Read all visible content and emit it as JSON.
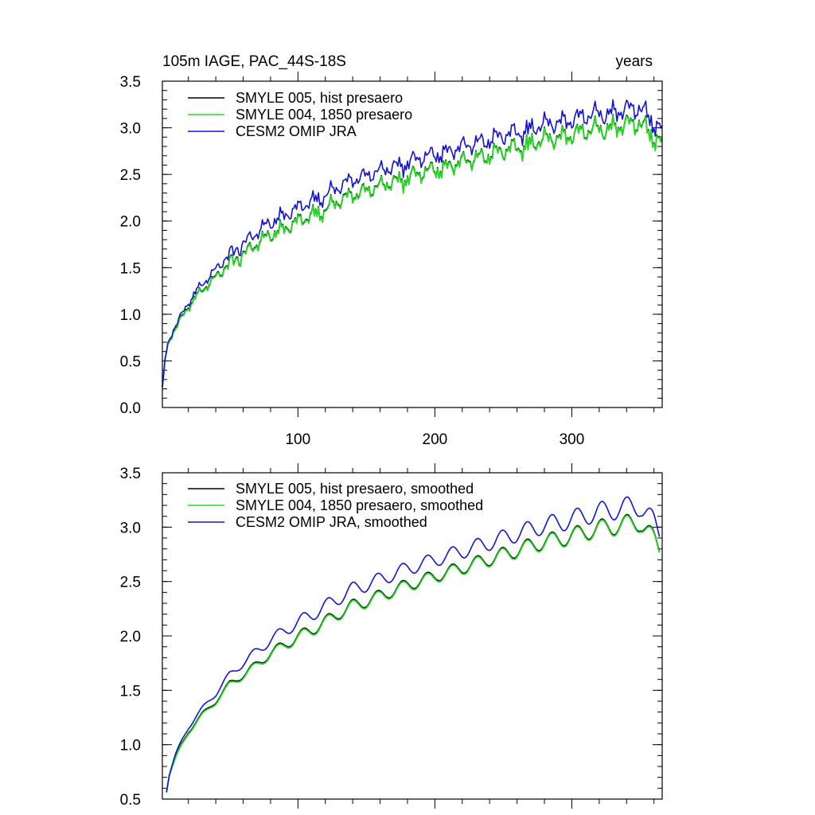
{
  "chart_data": [
    {
      "type": "line",
      "title_left": "105m IAGE, PAC_44S-18S",
      "title_right": "years",
      "xlabel": "",
      "ylabel": "",
      "xlim": [
        1,
        366
      ],
      "ylim": [
        0.0,
        3.5
      ],
      "xticks": [
        100,
        200,
        300
      ],
      "xtick_labels": [
        "100",
        "200",
        "300"
      ],
      "yticks": [
        0.0,
        0.5,
        1.0,
        1.5,
        2.0,
        2.5,
        3.0,
        3.5
      ],
      "ytick_labels": [
        "0.0",
        "0.5",
        "1.0",
        "1.5",
        "2.0",
        "2.5",
        "3.0",
        "3.5"
      ],
      "legend_location": "top-left",
      "series": [
        {
          "name": "SMYLE 005, hist presaero",
          "color": "#000000",
          "x": [
            1,
            3,
            6,
            10,
            15,
            20,
            25,
            30,
            35,
            40,
            45,
            50,
            60,
            70,
            80,
            90,
            100,
            110,
            120,
            130,
            140,
            150,
            160,
            170,
            180,
            190,
            200,
            210,
            220,
            230,
            240,
            250,
            260,
            270,
            280,
            290,
            300,
            310,
            320,
            330,
            340,
            350,
            355,
            360,
            366
          ],
          "y": [
            0.2,
            0.5,
            0.72,
            0.85,
            0.96,
            1.08,
            1.2,
            1.27,
            1.33,
            1.4,
            1.47,
            1.56,
            1.65,
            1.76,
            1.86,
            1.93,
            2.0,
            2.07,
            2.14,
            2.22,
            2.29,
            2.33,
            2.38,
            2.43,
            2.48,
            2.52,
            2.56,
            2.6,
            2.64,
            2.68,
            2.72,
            2.76,
            2.8,
            2.84,
            2.88,
            2.9,
            2.93,
            2.97,
            3.0,
            3.02,
            3.04,
            3.06,
            3.0,
            2.92,
            2.82
          ],
          "noise": 0.09
        },
        {
          "name": "SMYLE 004, 1850 presaero",
          "color": "#22dd22",
          "x": [
            1,
            3,
            6,
            10,
            15,
            20,
            25,
            30,
            35,
            40,
            45,
            50,
            60,
            70,
            80,
            90,
            100,
            110,
            120,
            130,
            140,
            150,
            160,
            170,
            180,
            190,
            200,
            210,
            220,
            230,
            240,
            250,
            260,
            270,
            280,
            290,
            300,
            310,
            320,
            330,
            340,
            350,
            355,
            360,
            366
          ],
          "y": [
            0.2,
            0.5,
            0.71,
            0.84,
            0.95,
            1.07,
            1.19,
            1.26,
            1.32,
            1.39,
            1.46,
            1.55,
            1.64,
            1.75,
            1.85,
            1.92,
            1.99,
            2.06,
            2.13,
            2.21,
            2.28,
            2.32,
            2.37,
            2.42,
            2.47,
            2.51,
            2.55,
            2.59,
            2.63,
            2.67,
            2.71,
            2.75,
            2.79,
            2.83,
            2.87,
            2.89,
            2.92,
            2.96,
            2.99,
            3.01,
            3.03,
            3.05,
            2.99,
            2.91,
            2.81
          ],
          "noise": 0.09
        },
        {
          "name": "CESM2 OMIP JRA",
          "color": "#1414d2",
          "x": [
            1,
            3,
            6,
            10,
            15,
            20,
            25,
            30,
            35,
            40,
            45,
            50,
            60,
            70,
            80,
            90,
            100,
            110,
            120,
            130,
            140,
            150,
            160,
            170,
            180,
            190,
            200,
            210,
            220,
            230,
            240,
            250,
            260,
            270,
            280,
            290,
            300,
            310,
            320,
            330,
            340,
            350,
            355,
            360,
            366
          ],
          "y": [
            0.2,
            0.51,
            0.73,
            0.87,
            0.99,
            1.12,
            1.25,
            1.33,
            1.4,
            1.48,
            1.56,
            1.65,
            1.76,
            1.88,
            1.99,
            2.07,
            2.14,
            2.22,
            2.29,
            2.37,
            2.45,
            2.49,
            2.54,
            2.59,
            2.64,
            2.68,
            2.72,
            2.76,
            2.8,
            2.84,
            2.88,
            2.92,
            2.96,
            3.0,
            3.04,
            3.06,
            3.09,
            3.13,
            3.16,
            3.18,
            3.2,
            3.22,
            3.16,
            3.07,
            2.96
          ],
          "noise": 0.09
        }
      ]
    },
    {
      "type": "line",
      "xlabel": "",
      "ylabel": "",
      "xlim": [
        1,
        366
      ],
      "ylim": [
        0.5,
        3.5
      ],
      "xticks": [
        100,
        200,
        300
      ],
      "xtick_labels": [],
      "yticks": [
        0.5,
        1.0,
        1.5,
        2.0,
        2.5,
        3.0,
        3.5
      ],
      "ytick_labels": [
        "0.5",
        "1.0",
        "1.5",
        "2.0",
        "2.5",
        "3.0",
        "3.5"
      ],
      "legend_location": "top-left",
      "series": [
        {
          "name": "SMYLE 005, hist presaero, smoothed",
          "color": "#000000",
          "x": [
            4,
            6,
            10,
            15,
            20,
            25,
            30,
            35,
            40,
            45,
            50,
            60,
            70,
            80,
            90,
            100,
            110,
            120,
            130,
            140,
            150,
            160,
            170,
            180,
            190,
            200,
            210,
            220,
            230,
            240,
            250,
            260,
            270,
            280,
            290,
            300,
            310,
            320,
            330,
            340,
            350,
            355,
            360,
            364
          ],
          "y": [
            0.58,
            0.72,
            0.86,
            1.0,
            1.12,
            1.2,
            1.28,
            1.34,
            1.4,
            1.48,
            1.56,
            1.64,
            1.74,
            1.84,
            1.92,
            1.99,
            2.06,
            2.13,
            2.21,
            2.28,
            2.32,
            2.37,
            2.42,
            2.47,
            2.51,
            2.55,
            2.59,
            2.63,
            2.67,
            2.71,
            2.75,
            2.79,
            2.83,
            2.87,
            2.89,
            2.92,
            2.96,
            2.99,
            3.01,
            3.03,
            3.05,
            2.97,
            2.88,
            2.81
          ],
          "wave": 0.07
        },
        {
          "name": "SMYLE 004, 1850 presaero, smoothed",
          "color": "#22dd22",
          "x": [
            4,
            6,
            10,
            15,
            20,
            25,
            30,
            35,
            40,
            45,
            50,
            60,
            70,
            80,
            90,
            100,
            110,
            120,
            130,
            140,
            150,
            160,
            170,
            180,
            190,
            200,
            210,
            220,
            230,
            240,
            250,
            260,
            270,
            280,
            290,
            300,
            310,
            320,
            330,
            340,
            350,
            355,
            360,
            364
          ],
          "y": [
            0.58,
            0.72,
            0.85,
            0.99,
            1.11,
            1.19,
            1.27,
            1.33,
            1.39,
            1.47,
            1.55,
            1.63,
            1.73,
            1.83,
            1.91,
            1.98,
            2.05,
            2.12,
            2.2,
            2.27,
            2.31,
            2.36,
            2.41,
            2.46,
            2.5,
            2.54,
            2.58,
            2.62,
            2.66,
            2.7,
            2.74,
            2.78,
            2.82,
            2.86,
            2.88,
            2.91,
            2.95,
            2.98,
            3.0,
            3.02,
            3.04,
            2.96,
            2.87,
            2.8
          ],
          "wave": 0.07
        },
        {
          "name": "CESM2 OMIP JRA, smoothed",
          "color": "#1414d2",
          "x": [
            4,
            6,
            10,
            15,
            20,
            25,
            30,
            35,
            40,
            45,
            50,
            60,
            70,
            80,
            90,
            100,
            110,
            120,
            130,
            140,
            150,
            160,
            170,
            180,
            190,
            200,
            210,
            220,
            230,
            240,
            250,
            260,
            270,
            280,
            290,
            300,
            310,
            320,
            330,
            340,
            350,
            355,
            360,
            364
          ],
          "y": [
            0.58,
            0.73,
            0.88,
            1.03,
            1.16,
            1.25,
            1.33,
            1.4,
            1.47,
            1.56,
            1.64,
            1.75,
            1.86,
            1.96,
            2.05,
            2.12,
            2.2,
            2.27,
            2.35,
            2.43,
            2.47,
            2.52,
            2.57,
            2.62,
            2.66,
            2.7,
            2.74,
            2.78,
            2.82,
            2.86,
            2.9,
            2.94,
            2.98,
            3.02,
            3.04,
            3.07,
            3.11,
            3.14,
            3.16,
            3.18,
            3.2,
            3.12,
            3.03,
            2.95
          ],
          "wave": 0.08
        }
      ]
    }
  ]
}
